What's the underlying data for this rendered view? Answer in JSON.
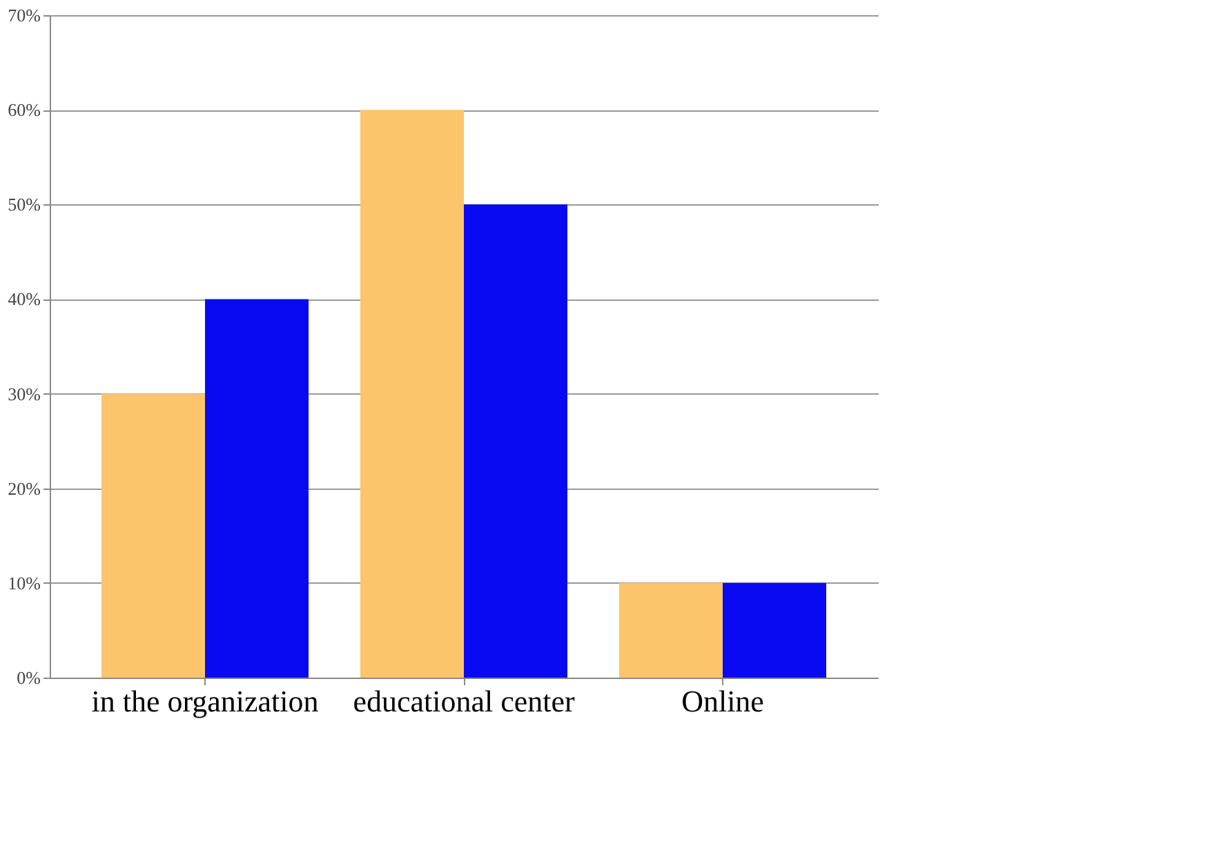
{
  "chart_data": {
    "type": "bar",
    "categories": [
      "in the organization",
      "educational center",
      "Online"
    ],
    "series": [
      {
        "color": "#fdc56b",
        "values": [
          30,
          60,
          10
        ]
      },
      {
        "color": "#0a0af2",
        "values": [
          40,
          50,
          10
        ]
      }
    ],
    "ylim": [
      0,
      70
    ],
    "yticks": [
      {
        "value": 0,
        "label": "0%"
      },
      {
        "value": 10,
        "label": "10%"
      },
      {
        "value": 20,
        "label": "20%"
      },
      {
        "value": 30,
        "label": "30%"
      },
      {
        "value": 40,
        "label": "40%"
      },
      {
        "value": 50,
        "label": "50%"
      },
      {
        "value": 60,
        "label": "60%"
      },
      {
        "value": 70,
        "label": "70%"
      }
    ],
    "grid": "y",
    "legend": false
  }
}
